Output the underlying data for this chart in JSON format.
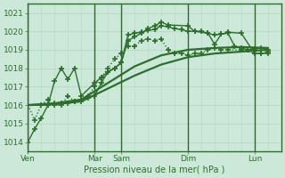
{
  "bg_color": "#cce8d8",
  "grid_color": "#b8dcc8",
  "vline_color": "#336633",
  "line_color": "#2d6e2d",
  "xlabel": "Pression niveau de la mer( hPa )",
  "ylim": [
    1013.5,
    1021.5
  ],
  "yticks": [
    1014,
    1015,
    1016,
    1017,
    1018,
    1019,
    1020,
    1021
  ],
  "xtick_labels": [
    "Ven",
    "Mar",
    "Sam",
    "Dim",
    "Lun"
  ],
  "xtick_positions": [
    0,
    60,
    84,
    144,
    204
  ],
  "total_hours": 228,
  "vline_positions": [
    0,
    60,
    84,
    144,
    204
  ],
  "series": [
    {
      "x": [
        0,
        6,
        12,
        18,
        24,
        30,
        36,
        42,
        48,
        54,
        60,
        66,
        72,
        78,
        84,
        90,
        96,
        102,
        108,
        114,
        120,
        126,
        132,
        138,
        144,
        150,
        156,
        162,
        168,
        174,
        180,
        186,
        192,
        198,
        204,
        210,
        216
      ],
      "y": [
        1014.0,
        1014.7,
        1015.3,
        1016.0,
        1016.1,
        1016.1,
        1016.1,
        1016.2,
        1016.3,
        1016.4,
        1016.5,
        1017.2,
        1017.8,
        1018.0,
        1018.3,
        1019.8,
        1019.9,
        1019.95,
        1020.05,
        1020.1,
        1020.3,
        1020.25,
        1020.15,
        1020.1,
        1020.0,
        1020.0,
        1020.0,
        1019.9,
        1019.8,
        1019.85,
        1019.9,
        1019.2,
        1019.1,
        1019.0,
        1019.05,
        1019.1,
        1019.0
      ],
      "marker": "+",
      "markersize": 4,
      "linewidth": 1.0,
      "linestyle": "-"
    },
    {
      "x": [
        0,
        18,
        24,
        30,
        36,
        42,
        48,
        60,
        66,
        72,
        78,
        84,
        90,
        96,
        102,
        108,
        114,
        120,
        126,
        144,
        150,
        162,
        168,
        174,
        180,
        192,
        204,
        210,
        216
      ],
      "y": [
        1016.0,
        1016.0,
        1017.3,
        1018.0,
        1017.4,
        1018.0,
        1016.5,
        1017.2,
        1017.5,
        1017.8,
        1018.0,
        1018.3,
        1019.5,
        1019.7,
        1019.9,
        1020.15,
        1020.3,
        1020.5,
        1020.35,
        1020.3,
        1020.0,
        1019.9,
        1019.3,
        1019.85,
        1019.95,
        1019.9,
        1018.8,
        1018.8,
        1018.8
      ],
      "marker": "+",
      "markersize": 4,
      "linewidth": 1.0,
      "linestyle": "-"
    },
    {
      "x": [
        0,
        24,
        48,
        72,
        96,
        120,
        144,
        168,
        192,
        216
      ],
      "y": [
        1016.0,
        1016.1,
        1016.3,
        1017.2,
        1018.1,
        1018.7,
        1019.0,
        1019.1,
        1019.15,
        1019.1
      ],
      "marker": null,
      "markersize": 0,
      "linewidth": 1.6,
      "linestyle": "-"
    },
    {
      "x": [
        0,
        24,
        48,
        72,
        96,
        120,
        144,
        168,
        192,
        216
      ],
      "y": [
        1016.0,
        1016.05,
        1016.2,
        1016.9,
        1017.6,
        1018.2,
        1018.6,
        1018.8,
        1018.9,
        1019.0
      ],
      "marker": null,
      "markersize": 0,
      "linewidth": 1.6,
      "linestyle": "-"
    },
    {
      "x": [
        0,
        6,
        12,
        18,
        24,
        30,
        36,
        42,
        48,
        54,
        60,
        66,
        72,
        78,
        84,
        90,
        96,
        102,
        108,
        114,
        120,
        126,
        132,
        138,
        144,
        150,
        156,
        162,
        168,
        174,
        180,
        192,
        204,
        210,
        216
      ],
      "y": [
        1016.0,
        1015.2,
        1016.0,
        1016.3,
        1016.0,
        1016.0,
        1016.5,
        1016.2,
        1016.2,
        1016.5,
        1017.0,
        1017.5,
        1018.0,
        1018.5,
        1018.8,
        1019.2,
        1019.2,
        1019.5,
        1019.6,
        1019.5,
        1019.6,
        1019.0,
        1018.8,
        1018.8,
        1018.7,
        1018.8,
        1018.8,
        1019.0,
        1019.1,
        1019.0,
        1019.0,
        1019.0,
        1018.8,
        1018.8,
        1018.9
      ],
      "marker": "+",
      "markersize": 4,
      "linewidth": 1.0,
      "linestyle": ":"
    }
  ]
}
